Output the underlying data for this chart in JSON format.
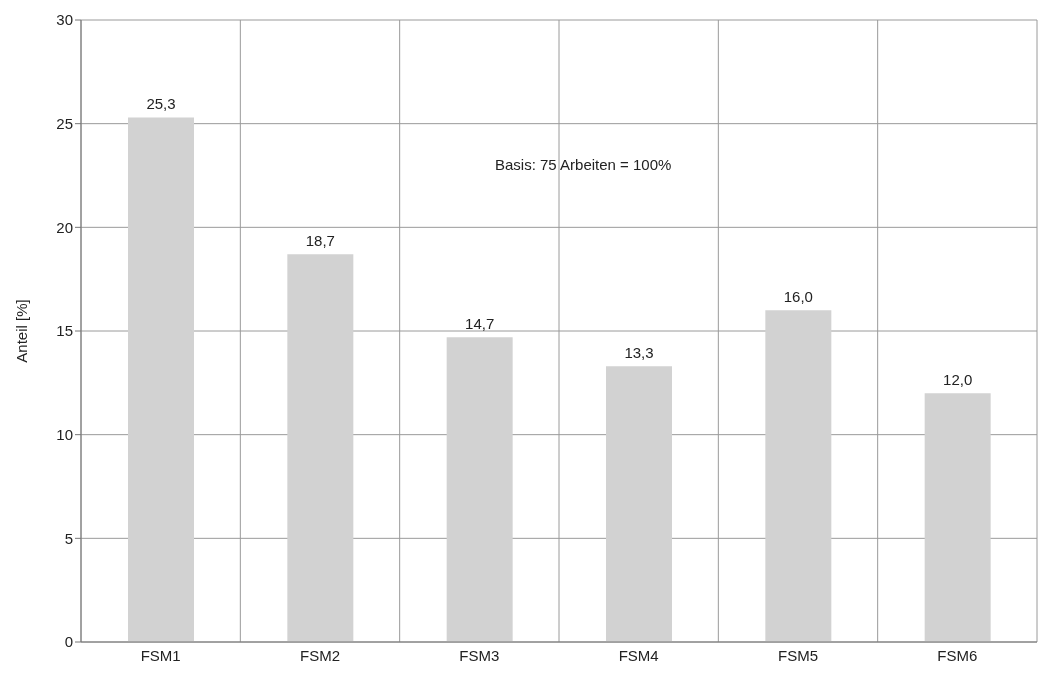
{
  "chart_data": {
    "type": "bar",
    "ylabel": "Anteil [%]",
    "categories": [
      "FSM1",
      "FSM2",
      "FSM3",
      "FSM4",
      "FSM5",
      "FSM6"
    ],
    "values": [
      25.3,
      18.7,
      14.7,
      13.3,
      16.0,
      12.0
    ],
    "color": "#d2d2d2",
    "value_labels": [
      "25,3",
      "18,7",
      "14,7",
      "13,3",
      "16,0",
      "12,0"
    ],
    "ylim": [
      0,
      30
    ],
    "yticks": [
      0,
      5,
      10,
      15,
      20,
      25,
      30
    ],
    "grid": true,
    "annotations": [
      "Basis: 75 Arbeiten = 100%"
    ]
  }
}
